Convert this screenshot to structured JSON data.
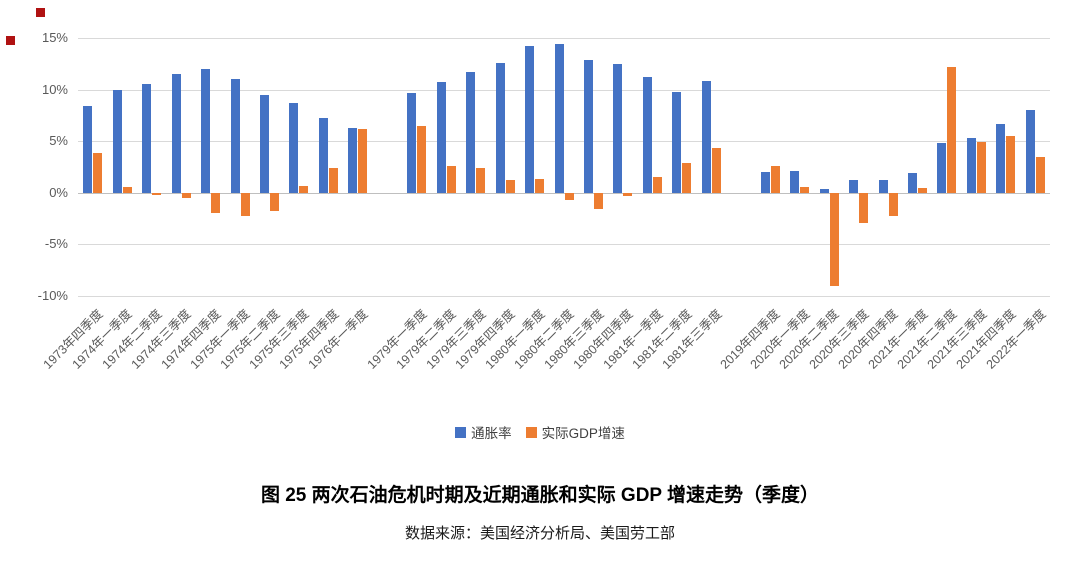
{
  "decorations": {
    "red_square_color": "#b01212"
  },
  "chart_data": {
    "type": "bar",
    "title": "图 25 两次石油危机时期及近期通胀和实际 GDP 增速走势（季度）",
    "source": "数据来源：美国经济分析局、美国劳工部",
    "ylim": [
      -10,
      15
    ],
    "ytick_values": [
      15,
      10,
      5,
      0,
      -5,
      -10
    ],
    "ytick_labels": [
      "15%",
      "10%",
      "5%",
      "0%",
      "-5%",
      "-10%"
    ],
    "grid": true,
    "legend_position": "bottom",
    "legend": [
      "通胀率",
      "实际GDP增速"
    ],
    "colors": {
      "inflation": "#4472C4",
      "gdp": "#ED7D31"
    },
    "categories": [
      "1973年四季度",
      "1974年一季度",
      "1974年二季度",
      "1974年三季度",
      "1974年四季度",
      "1975年一季度",
      "1975年二季度",
      "1975年三季度",
      "1975年四季度",
      "1976年一季度",
      "",
      "1979年一季度",
      "1979年二季度",
      "1979年三季度",
      "1979年四季度",
      "1980年一季度",
      "1980年二季度",
      "1980年三季度",
      "1980年四季度",
      "1981年一季度",
      "1981年二季度",
      "1981年三季度",
      "",
      "2019年四季度",
      "2020年一季度",
      "2020年二季度",
      "2020年三季度",
      "2020年四季度",
      "2021年一季度",
      "2021年二季度",
      "2021年三季度",
      "2021年四季度",
      "2022年一季度"
    ],
    "series": [
      {
        "name": "通胀率",
        "values": [
          8.4,
          10.0,
          10.5,
          11.5,
          12.0,
          11.0,
          9.5,
          8.7,
          7.3,
          6.3,
          null,
          9.7,
          10.7,
          11.7,
          12.6,
          14.2,
          14.4,
          12.9,
          12.5,
          11.2,
          9.8,
          10.8,
          null,
          2.0,
          2.1,
          0.4,
          1.2,
          1.2,
          1.9,
          4.8,
          5.3,
          6.7,
          8.0
        ]
      },
      {
        "name": "实际GDP增速",
        "values": [
          3.9,
          0.6,
          -0.2,
          -0.5,
          -2.0,
          -2.3,
          -1.8,
          0.7,
          2.4,
          6.2,
          null,
          6.5,
          2.6,
          2.4,
          1.2,
          1.3,
          -0.7,
          -1.6,
          -0.3,
          1.5,
          2.9,
          4.3,
          null,
          2.6,
          0.6,
          -9.0,
          -2.9,
          -2.3,
          0.5,
          12.2,
          4.9,
          5.5,
          3.5
        ]
      }
    ]
  }
}
